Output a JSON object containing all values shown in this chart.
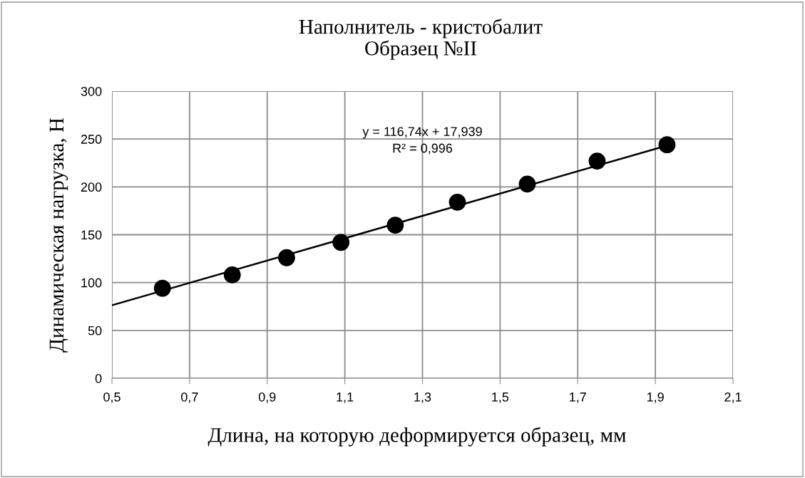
{
  "chart_data": {
    "type": "scatter",
    "title": "Наполнитель - кристобалит\nОбразец №II",
    "xlabel": "Длина, на которую деформируется образец, мм",
    "ylabel": "Динамическая нагрузка, Н",
    "series": [
      {
        "color": "#000000",
        "marker": "circle",
        "x": [
          0.63,
          0.81,
          0.95,
          1.09,
          1.23,
          1.39,
          1.57,
          1.75,
          1.93
        ],
        "values": [
          94,
          108,
          126,
          142,
          160,
          184,
          203,
          227,
          244
        ]
      },
      {
        "type": "line",
        "color": "#000000",
        "marker": "none",
        "x": [
          0.5,
          1.93
        ],
        "values": [
          76.3,
          243.2
        ]
      }
    ],
    "annotations": [
      "y = 116,74x + 17,939\nR² = 0,996"
    ],
    "xlim": [
      0.5,
      2.1
    ],
    "xticks": [
      {
        "value": 0.5,
        "label": "0,5"
      },
      {
        "value": 0.7,
        "label": "0,7"
      },
      {
        "value": 0.9,
        "label": "0,9"
      },
      {
        "value": 1.1,
        "label": "1,1"
      },
      {
        "value": 1.3,
        "label": "1,3"
      },
      {
        "value": 1.5,
        "label": "1,5"
      },
      {
        "value": 1.7,
        "label": "1,7"
      },
      {
        "value": 1.9,
        "label": "1,9"
      },
      {
        "value": 2.1,
        "label": "2,1"
      }
    ],
    "ylim": [
      0,
      300
    ],
    "yticks": [
      0,
      50,
      100,
      150,
      200,
      250,
      300
    ],
    "grid": true,
    "legend": false
  }
}
